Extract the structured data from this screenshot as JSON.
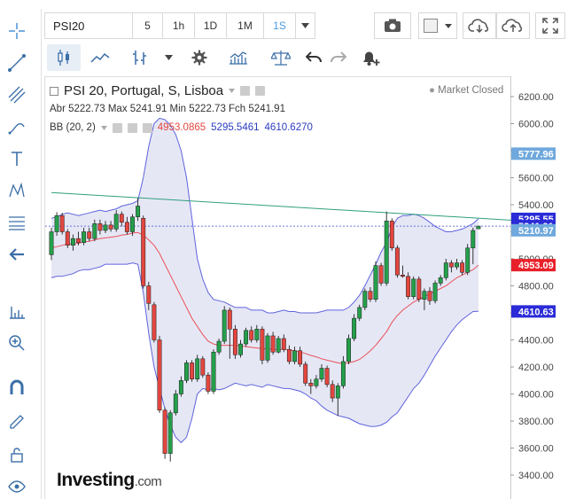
{
  "toolbar": {
    "symbol": "PSI20",
    "intervals": [
      "5",
      "1h",
      "1D",
      "1M",
      "1S"
    ],
    "active_interval": "1S"
  },
  "legend": {
    "title": "PSI 20, Portugal, S, Lisboa",
    "ohlc": "Abr 5222.73 Max 5241.91 Min 5222.73 Fch 5241.91",
    "bb_label": "BB (20, 2)",
    "bb_values": [
      "4953.0865",
      "5295.5461",
      "4610.6270"
    ],
    "market_status": "Market Closed"
  },
  "brand": {
    "name": "Investing",
    "suffix": ".com"
  },
  "colors": {
    "up": "#24a04a",
    "down": "#e3463f",
    "band_fill": "#e3e4f4",
    "band_line": "#5f63dd",
    "mid_line": "#e9525a",
    "trend_line": "#2f9e7e",
    "accent": "#4a9be0"
  },
  "chart_data": {
    "type": "candlestick",
    "ylim": [
      3200,
      6300
    ],
    "ticks": [
      6200,
      6000,
      5800,
      5600,
      5400,
      5200,
      5000,
      4800,
      4600,
      4400,
      4200,
      4000,
      3800,
      3600,
      3400
    ],
    "candles": [
      [
        5030,
        5200,
        5230,
        4990
      ],
      [
        5200,
        5320,
        5345,
        5170
      ],
      [
        5320,
        5200,
        5340,
        5180
      ],
      [
        5200,
        5100,
        5220,
        5080
      ],
      [
        5100,
        5150,
        5180,
        5060
      ],
      [
        5150,
        5120,
        5200,
        5100
      ],
      [
        5120,
        5200,
        5230,
        5100
      ],
      [
        5200,
        5150,
        5230,
        5130
      ],
      [
        5150,
        5260,
        5290,
        5130
      ],
      [
        5260,
        5210,
        5290,
        5180
      ],
      [
        5210,
        5250,
        5280,
        5190
      ],
      [
        5250,
        5220,
        5280,
        5200
      ],
      [
        5220,
        5330,
        5360,
        5200
      ],
      [
        5330,
        5270,
        5350,
        5240
      ],
      [
        5270,
        5200,
        5310,
        5180
      ],
      [
        5200,
        5310,
        5330,
        5170
      ],
      [
        5310,
        5390,
        5450,
        5280
      ],
      [
        5300,
        4800,
        5320,
        4780
      ],
      [
        4800,
        4670,
        4830,
        4620
      ],
      [
        4660,
        4400,
        4680,
        4380
      ],
      [
        4400,
        3880,
        4430,
        3860
      ],
      [
        3880,
        3560,
        3900,
        3520
      ],
      [
        3560,
        3860,
        3880,
        3500
      ],
      [
        3860,
        4000,
        4030,
        3840
      ],
      [
        4000,
        4100,
        4130,
        3980
      ],
      [
        4100,
        4230,
        4250,
        4080
      ],
      [
        4230,
        4110,
        4250,
        4090
      ],
      [
        4110,
        4260,
        4290,
        4090
      ],
      [
        4260,
        4140,
        4280,
        4120
      ],
      [
        4140,
        4020,
        4160,
        4000
      ],
      [
        4020,
        4310,
        4330,
        4000
      ],
      [
        4310,
        4390,
        4410,
        4290
      ],
      [
        4390,
        4620,
        4650,
        4370
      ],
      [
        4620,
        4480,
        4640,
        4260
      ],
      [
        4480,
        4290,
        4510,
        4260
      ],
      [
        4290,
        4370,
        4400,
        4270
      ],
      [
        4370,
        4470,
        4490,
        4350
      ],
      [
        4470,
        4400,
        4500,
        4380
      ],
      [
        4400,
        4480,
        4510,
        4380
      ],
      [
        4480,
        4250,
        4500,
        4220
      ],
      [
        4250,
        4430,
        4450,
        4230
      ],
      [
        4430,
        4310,
        4460,
        4290
      ],
      [
        4310,
        4410,
        4430,
        4300
      ],
      [
        4410,
        4330,
        4440,
        4310
      ],
      [
        4330,
        4240,
        4360,
        4220
      ],
      [
        4240,
        4320,
        4350,
        4220
      ],
      [
        4320,
        4220,
        4350,
        4200
      ],
      [
        4220,
        4080,
        4240,
        4060
      ],
      [
        4080,
        4060,
        4110,
        4000
      ],
      [
        4060,
        4110,
        4140,
        4040
      ],
      [
        4110,
        4190,
        4220,
        4090
      ],
      [
        4190,
        4070,
        4210,
        4050
      ],
      [
        4070,
        3970,
        4100,
        3940
      ],
      [
        3970,
        4060,
        4080,
        3840
      ],
      [
        4060,
        4240,
        4280,
        4040
      ],
      [
        4240,
        4410,
        4440,
        4220
      ],
      [
        4410,
        4560,
        4590,
        4390
      ],
      [
        4560,
        4640,
        4660,
        4540
      ],
      [
        4640,
        4760,
        4780,
        4620
      ],
      [
        4760,
        4700,
        4790,
        4680
      ],
      [
        4700,
        4950,
        4980,
        4680
      ],
      [
        4950,
        4820,
        4970,
        4800
      ],
      [
        4820,
        5280,
        5350,
        4800
      ],
      [
        5280,
        5080,
        5300,
        5060
      ],
      [
        5080,
        4880,
        5100,
        4860
      ],
      [
        4880,
        4870,
        4950,
        4860
      ],
      [
        4870,
        4720,
        4900,
        4700
      ],
      [
        4720,
        4850,
        4870,
        4700
      ],
      [
        4850,
        4700,
        4870,
        4680
      ],
      [
        4700,
        4760,
        4780,
        4620
      ],
      [
        4760,
        4690,
        4790,
        4660
      ],
      [
        4690,
        4820,
        4840,
        4670
      ],
      [
        4820,
        4860,
        4880,
        4800
      ],
      [
        4860,
        4970,
        5000,
        4840
      ],
      [
        4970,
        4940,
        4990,
        4900
      ],
      [
        4940,
        4970,
        5000,
        4920
      ],
      [
        4970,
        4900,
        4990,
        4880
      ],
      [
        4900,
        5080,
        5110,
        4880
      ],
      [
        5080,
        5210,
        5230,
        4960
      ],
      [
        5222,
        5242,
        5242,
        5222
      ]
    ],
    "bb_upper": [
      5300,
      5310,
      5330,
      5340,
      5330,
      5320,
      5330,
      5340,
      5350,
      5360,
      5350,
      5360,
      5370,
      5390,
      5400,
      5410,
      5430,
      5600,
      5830,
      6000,
      6040,
      6030,
      5990,
      5920,
      5800,
      5600,
      5300,
      5000,
      4850,
      4750,
      4700,
      4690,
      4680,
      4660,
      4640,
      4640,
      4640,
      4620,
      4620,
      4620,
      4600,
      4600,
      4610,
      4620,
      4610,
      4610,
      4600,
      4600,
      4600,
      4600,
      4610,
      4620,
      4620,
      4620,
      4620,
      4640,
      4680,
      4730,
      4800,
      4880,
      4960,
      5050,
      5120,
      5230,
      5300,
      5320,
      5320,
      5330,
      5320,
      5300,
      5270,
      5240,
      5220,
      5200,
      5200,
      5210,
      5220,
      5240,
      5260,
      5296
    ],
    "bb_mid": [
      5080,
      5090,
      5100,
      5110,
      5110,
      5115,
      5125,
      5130,
      5140,
      5150,
      5155,
      5160,
      5165,
      5175,
      5180,
      5190,
      5195,
      5175,
      5140,
      5100,
      5040,
      4960,
      4880,
      4800,
      4720,
      4640,
      4560,
      4500,
      4440,
      4390,
      4370,
      4360,
      4360,
      4360,
      4360,
      4355,
      4350,
      4345,
      4340,
      4335,
      4335,
      4330,
      4330,
      4330,
      4325,
      4320,
      4310,
      4300,
      4285,
      4275,
      4260,
      4250,
      4240,
      4230,
      4225,
      4230,
      4240,
      4255,
      4285,
      4320,
      4360,
      4410,
      4460,
      4530,
      4580,
      4620,
      4650,
      4680,
      4700,
      4720,
      4740,
      4760,
      4780,
      4800,
      4830,
      4860,
      4880,
      4900,
      4920,
      4953
    ],
    "bb_lower": [
      4860,
      4870,
      4870,
      4880,
      4890,
      4910,
      4920,
      4920,
      4930,
      4940,
      4960,
      4960,
      4960,
      4960,
      4960,
      4970,
      4960,
      4750,
      4450,
      4200,
      4040,
      3890,
      3770,
      3680,
      3640,
      3680,
      3820,
      4000,
      4040,
      4030,
      4040,
      4030,
      4040,
      4060,
      4080,
      4070,
      4060,
      4070,
      4060,
      4050,
      4070,
      4060,
      4050,
      4040,
      4040,
      4030,
      4020,
      4000,
      3970,
      3950,
      3910,
      3880,
      3860,
      3840,
      3830,
      3820,
      3800,
      3780,
      3770,
      3760,
      3760,
      3770,
      3790,
      3830,
      3860,
      3920,
      3980,
      4040,
      4080,
      4140,
      4210,
      4280,
      4340,
      4400,
      4460,
      4510,
      4550,
      4580,
      4610,
      4611
    ],
    "trend": [
      [
        0,
        5490
      ],
      [
        79,
        5290
      ]
    ],
    "last_line": 5242,
    "price_labels": [
      {
        "value": 5777.96,
        "text": "5777.96",
        "style": "blue-light"
      },
      {
        "value": 5295.55,
        "text": "5295.55",
        "style": "blue-dark"
      },
      {
        "value": 5241.91,
        "text": "5241.91",
        "style": "blue-dark"
      },
      {
        "value": 5210.97,
        "text": "5210.97",
        "style": "blue-light"
      },
      {
        "value": 4953.09,
        "text": "4953.09",
        "style": "red"
      },
      {
        "value": 4610.63,
        "text": "4610.63",
        "style": "blue-dark"
      }
    ]
  }
}
